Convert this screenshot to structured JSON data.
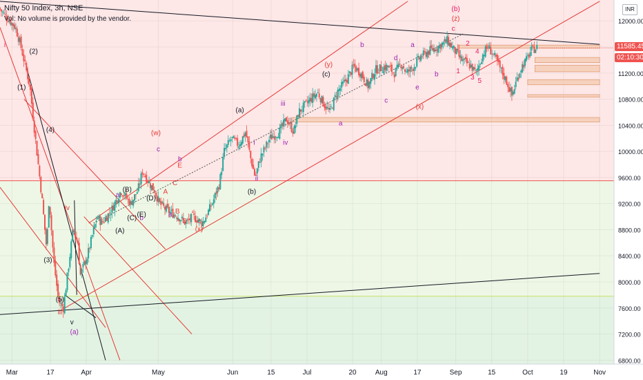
{
  "header": {
    "title": "Nifty 50 Index, 3h, NSE",
    "volume_note": "Vol: No volume is provided by the vendor.",
    "currency": "INR"
  },
  "price_tags": {
    "last_price": "11585.45",
    "countdown": "02:10:30",
    "last_color": "#ef5350",
    "countdown_color": "#ef5350"
  },
  "colors": {
    "up": "#26a69a",
    "down": "#ef5350",
    "channel": "#e53935",
    "trendline": "#131722",
    "zone_top": "#fde7e7",
    "zone_bottom": "#eef7e6",
    "zone_lower": "#e3f3e3",
    "box": "#f2c3a4"
  },
  "chart_data": {
    "type": "candlestick",
    "title": "Nifty 50 Index, 3h, NSE",
    "y_axis": {
      "ticks": [
        12000,
        11600,
        11200,
        10800,
        10400,
        10000,
        9600,
        9200,
        8800,
        8400,
        8000,
        7600,
        7200,
        6800
      ],
      "labels": [
        "12000.00",
        "11600.00",
        "11200.00",
        "10800.00",
        "10400.00",
        "10000.00",
        "9600.00",
        "9200.00",
        "8800.00",
        "8400.00",
        "8000.00",
        "7600.00",
        "7200.00",
        "6800.00"
      ],
      "range": [
        6740,
        12320
      ]
    },
    "x_axis": {
      "labels": [
        "Mar",
        "17",
        "Apr",
        "May",
        "Jun",
        "15",
        "Jul",
        "20",
        "Aug",
        "17",
        "Sep",
        "15",
        "Oct",
        "19",
        "Nov"
      ],
      "positions": [
        0,
        16,
        31,
        61,
        92,
        108,
        123,
        142,
        154,
        169,
        185,
        200,
        215,
        230,
        245
      ],
      "range": [
        -5,
        251
      ]
    },
    "price_path": [
      [
        -5,
        12200
      ],
      [
        2,
        11900
      ],
      [
        4,
        11650
      ],
      [
        8,
        11000
      ],
      [
        10,
        10300
      ],
      [
        13,
        9300
      ],
      [
        15,
        8500
      ],
      [
        16,
        9300
      ],
      [
        18,
        8300
      ],
      [
        20,
        7700
      ],
      [
        22,
        7600
      ],
      [
        24,
        8200
      ],
      [
        26,
        8800
      ],
      [
        28,
        8600
      ],
      [
        29,
        8100
      ],
      [
        32,
        8400
      ],
      [
        36,
        9000
      ],
      [
        38,
        8900
      ],
      [
        42,
        9100
      ],
      [
        46,
        9400
      ],
      [
        50,
        9200
      ],
      [
        53,
        9400
      ],
      [
        55,
        9700
      ],
      [
        58,
        9500
      ],
      [
        60,
        9400
      ],
      [
        62,
        9200
      ],
      [
        65,
        9100
      ],
      [
        70,
        9000
      ],
      [
        73,
        8900
      ],
      [
        76,
        9000
      ],
      [
        80,
        8900
      ],
      [
        84,
        9200
      ],
      [
        87,
        9500
      ],
      [
        89,
        10000
      ],
      [
        92,
        10200
      ],
      [
        95,
        10100
      ],
      [
        98,
        10300
      ],
      [
        100,
        9900
      ],
      [
        102,
        9600
      ],
      [
        104,
        9900
      ],
      [
        108,
        10200
      ],
      [
        112,
        10300
      ],
      [
        115,
        10500
      ],
      [
        118,
        10300
      ],
      [
        120,
        10600
      ],
      [
        125,
        10800
      ],
      [
        128,
        10900
      ],
      [
        131,
        10700
      ],
      [
        133,
        10600
      ],
      [
        136,
        10900
      ],
      [
        140,
        11100
      ],
      [
        143,
        11300
      ],
      [
        146,
        11200
      ],
      [
        149,
        11000
      ],
      [
        152,
        11250
      ],
      [
        157,
        11300
      ],
      [
        160,
        11200
      ],
      [
        163,
        11350
      ],
      [
        165,
        11200
      ],
      [
        168,
        11300
      ],
      [
        171,
        11450
      ],
      [
        175,
        11550
      ],
      [
        178,
        11600
      ],
      [
        180,
        11650
      ],
      [
        182,
        11700
      ],
      [
        184,
        11600
      ],
      [
        186,
        11500
      ],
      [
        188,
        11400
      ],
      [
        190,
        11350
      ],
      [
        192,
        11300
      ],
      [
        194,
        11200
      ],
      [
        197,
        11500
      ],
      [
        199,
        11600
      ],
      [
        201,
        11500
      ],
      [
        203,
        11350
      ],
      [
        205,
        11200
      ],
      [
        207,
        11050
      ],
      [
        209,
        10850
      ],
      [
        211,
        11100
      ],
      [
        213,
        11300
      ],
      [
        215,
        11400
      ],
      [
        217,
        11550
      ],
      [
        219,
        11585
      ]
    ],
    "horizontal_levels": [
      9550,
      7780
    ],
    "zones": [
      {
        "from": 9550,
        "to": 12320,
        "color": "#fde7e7"
      },
      {
        "from": 7780,
        "to": 9550,
        "color": "#eef7e6"
      },
      {
        "from": 6740,
        "to": 7780,
        "color": "#e3f3e3"
      }
    ],
    "boxes": [
      {
        "x1": 186,
        "x2": 245,
        "y1": 11580,
        "y2": 11630
      },
      {
        "x1": 218,
        "x2": 245,
        "y1": 11360,
        "y2": 11440
      },
      {
        "x1": 218,
        "x2": 245,
        "y1": 11220,
        "y2": 11320
      },
      {
        "x1": 215,
        "x2": 245,
        "y1": 11020,
        "y2": 11100
      },
      {
        "x1": 215,
        "x2": 245,
        "y1": 10830,
        "y2": 10870
      },
      {
        "x1": 117,
        "x2": 245,
        "y1": 10450,
        "y2": 10520
      }
    ],
    "channel_lines": [
      {
        "p1": [
          -5,
          9450
        ],
        "p2": [
          39,
          7300
        ]
      },
      {
        "p1": [
          5,
          10800
        ],
        "p2": [
          64,
          8500
        ]
      },
      {
        "p1": [
          22,
          7600
        ],
        "p2": [
          245,
          12300
        ]
      },
      {
        "p1": [
          32,
          8900
        ],
        "p2": [
          165,
          12300
        ]
      },
      {
        "p1": [
          -5,
          11900
        ],
        "p2": [
          45,
          6800
        ]
      },
      {
        "p1": [
          30,
          9000
        ],
        "p2": [
          75,
          7200
        ]
      }
    ],
    "black_lines": [
      {
        "p1": [
          -5,
          12300
        ],
        "p2": [
          245,
          11640
        ]
      },
      {
        "p1": [
          -5,
          7500
        ],
        "p2": [
          245,
          8130
        ]
      },
      {
        "p1": [
          6,
          11300
        ],
        "p2": [
          39,
          6800
        ]
      },
      {
        "p1": [
          26,
          9250
        ],
        "p2": [
          27,
          7800
        ]
      },
      {
        "p1": [
          22,
          7800
        ],
        "p2": [
          35,
          7450
        ]
      }
    ],
    "dotted_line": {
      "p1": [
        34,
        8900
      ],
      "p2": [
        188,
        11800
      ]
    },
    "labels": [
      {
        "t": "i",
        "x": -3,
        "y": 11600,
        "c": "#e91e63"
      },
      {
        "t": "(2)",
        "x": 9,
        "y": 11500,
        "c": "#131722"
      },
      {
        "t": "(1)",
        "x": 4,
        "y": 10950,
        "c": "#131722"
      },
      {
        "t": "(4)",
        "x": 16,
        "y": 10300,
        "c": "#131722"
      },
      {
        "t": "iv",
        "x": 23,
        "y": 9100,
        "c": "#e53935"
      },
      {
        "t": "(3)",
        "x": 15,
        "y": 8300,
        "c": "#131722"
      },
      {
        "t": "(5)",
        "x": 20,
        "y": 7700,
        "c": "#131722"
      },
      {
        "t": "iii",
        "x": 20,
        "y": 7500,
        "c": "#e53935"
      },
      {
        "t": "v",
        "x": 25,
        "y": 7350,
        "c": "#131722"
      },
      {
        "t": "(a)",
        "x": 26,
        "y": 7200,
        "c": "#9c27b0"
      },
      {
        "t": "(w)",
        "x": 60,
        "y": 10250,
        "c": "#e53935"
      },
      {
        "t": "c",
        "x": 61,
        "y": 10000,
        "c": "#9c27b0"
      },
      {
        "t": "b",
        "x": 70,
        "y": 9850,
        "c": "#9c27b0"
      },
      {
        "t": "(a)",
        "x": 95,
        "y": 10600,
        "c": "#131722"
      },
      {
        "t": "iii",
        "x": 113,
        "y": 10700,
        "c": "#9c27b0"
      },
      {
        "t": "(y)",
        "x": 132,
        "y": 11300,
        "c": "#e53935"
      },
      {
        "t": "(c)",
        "x": 131,
        "y": 11150,
        "c": "#131722"
      },
      {
        "t": "b",
        "x": 146,
        "y": 11600,
        "c": "#9c27b0"
      },
      {
        "t": "d",
        "x": 160,
        "y": 11400,
        "c": "#9c27b0"
      },
      {
        "t": "a",
        "x": 167,
        "y": 11600,
        "c": "#9c27b0"
      },
      {
        "t": "(b)",
        "x": 185,
        "y": 12150,
        "c": "#e91e63"
      },
      {
        "t": "(z)",
        "x": 185,
        "y": 12000,
        "c": "#e53935"
      },
      {
        "t": "c",
        "x": 184,
        "y": 11850,
        "c": "#e91e63"
      },
      {
        "t": "e",
        "x": 169,
        "y": 10950,
        "c": "#9c27b0"
      },
      {
        "t": "c",
        "x": 156,
        "y": 10750,
        "c": "#9c27b0"
      },
      {
        "t": "(x)",
        "x": 170,
        "y": 10650,
        "c": "#e53935"
      },
      {
        "t": "a",
        "x": 137,
        "y": 10400,
        "c": "#9c27b0"
      },
      {
        "t": "b",
        "x": 177,
        "y": 11150,
        "c": "#9c27b0"
      },
      {
        "t": "1",
        "x": 186,
        "y": 11200,
        "c": "#e91e63"
      },
      {
        "t": "2",
        "x": 190,
        "y": 11620,
        "c": "#e91e63"
      },
      {
        "t": "3",
        "x": 192,
        "y": 11100,
        "c": "#e91e63"
      },
      {
        "t": "4",
        "x": 194,
        "y": 11500,
        "c": "#e91e63"
      },
      {
        "t": "5",
        "x": 195,
        "y": 11050,
        "c": "#e91e63"
      },
      {
        "t": "i",
        "x": 101,
        "y": 10100,
        "c": "#9c27b0"
      },
      {
        "t": "ii",
        "x": 102,
        "y": 9550,
        "c": "#9c27b0"
      },
      {
        "t": "(b)",
        "x": 100,
        "y": 9350,
        "c": "#131722"
      },
      {
        "t": "iv",
        "x": 114,
        "y": 10100,
        "c": "#9c27b0"
      },
      {
        "t": "c",
        "x": 78,
        "y": 8900,
        "c": "#e53935"
      },
      {
        "t": "(x)",
        "x": 78,
        "y": 8780,
        "c": "#e53935"
      },
      {
        "t": "a",
        "x": 44,
        "y": 9300,
        "c": "#9c27b0"
      },
      {
        "t": "a",
        "x": 66,
        "y": 9000,
        "c": "#9c27b0"
      },
      {
        "t": "b",
        "x": 54,
        "y": 8950,
        "c": "#9c27b0"
      },
      {
        "t": "(B)",
        "x": 48,
        "y": 9380,
        "c": "#131722"
      },
      {
        "t": "(D)",
        "x": 58,
        "y": 9250,
        "c": "#131722"
      },
      {
        "t": "(C)",
        "x": 50,
        "y": 8950,
        "c": "#131722"
      },
      {
        "t": "(E)",
        "x": 54,
        "y": 9000,
        "c": "#131722"
      },
      {
        "t": "(A)",
        "x": 45,
        "y": 8750,
        "c": "#131722"
      },
      {
        "t": "E",
        "x": 70,
        "y": 9750,
        "c": "#e53935"
      },
      {
        "t": "C",
        "x": 68,
        "y": 9480,
        "c": "#e53935"
      },
      {
        "t": "A",
        "x": 64,
        "y": 9350,
        "c": "#e53935"
      },
      {
        "t": "B",
        "x": 69,
        "y": 9050,
        "c": "#e53935"
      },
      {
        "t": "D",
        "x": 72,
        "y": 8900,
        "c": "#e53935"
      }
    ]
  }
}
